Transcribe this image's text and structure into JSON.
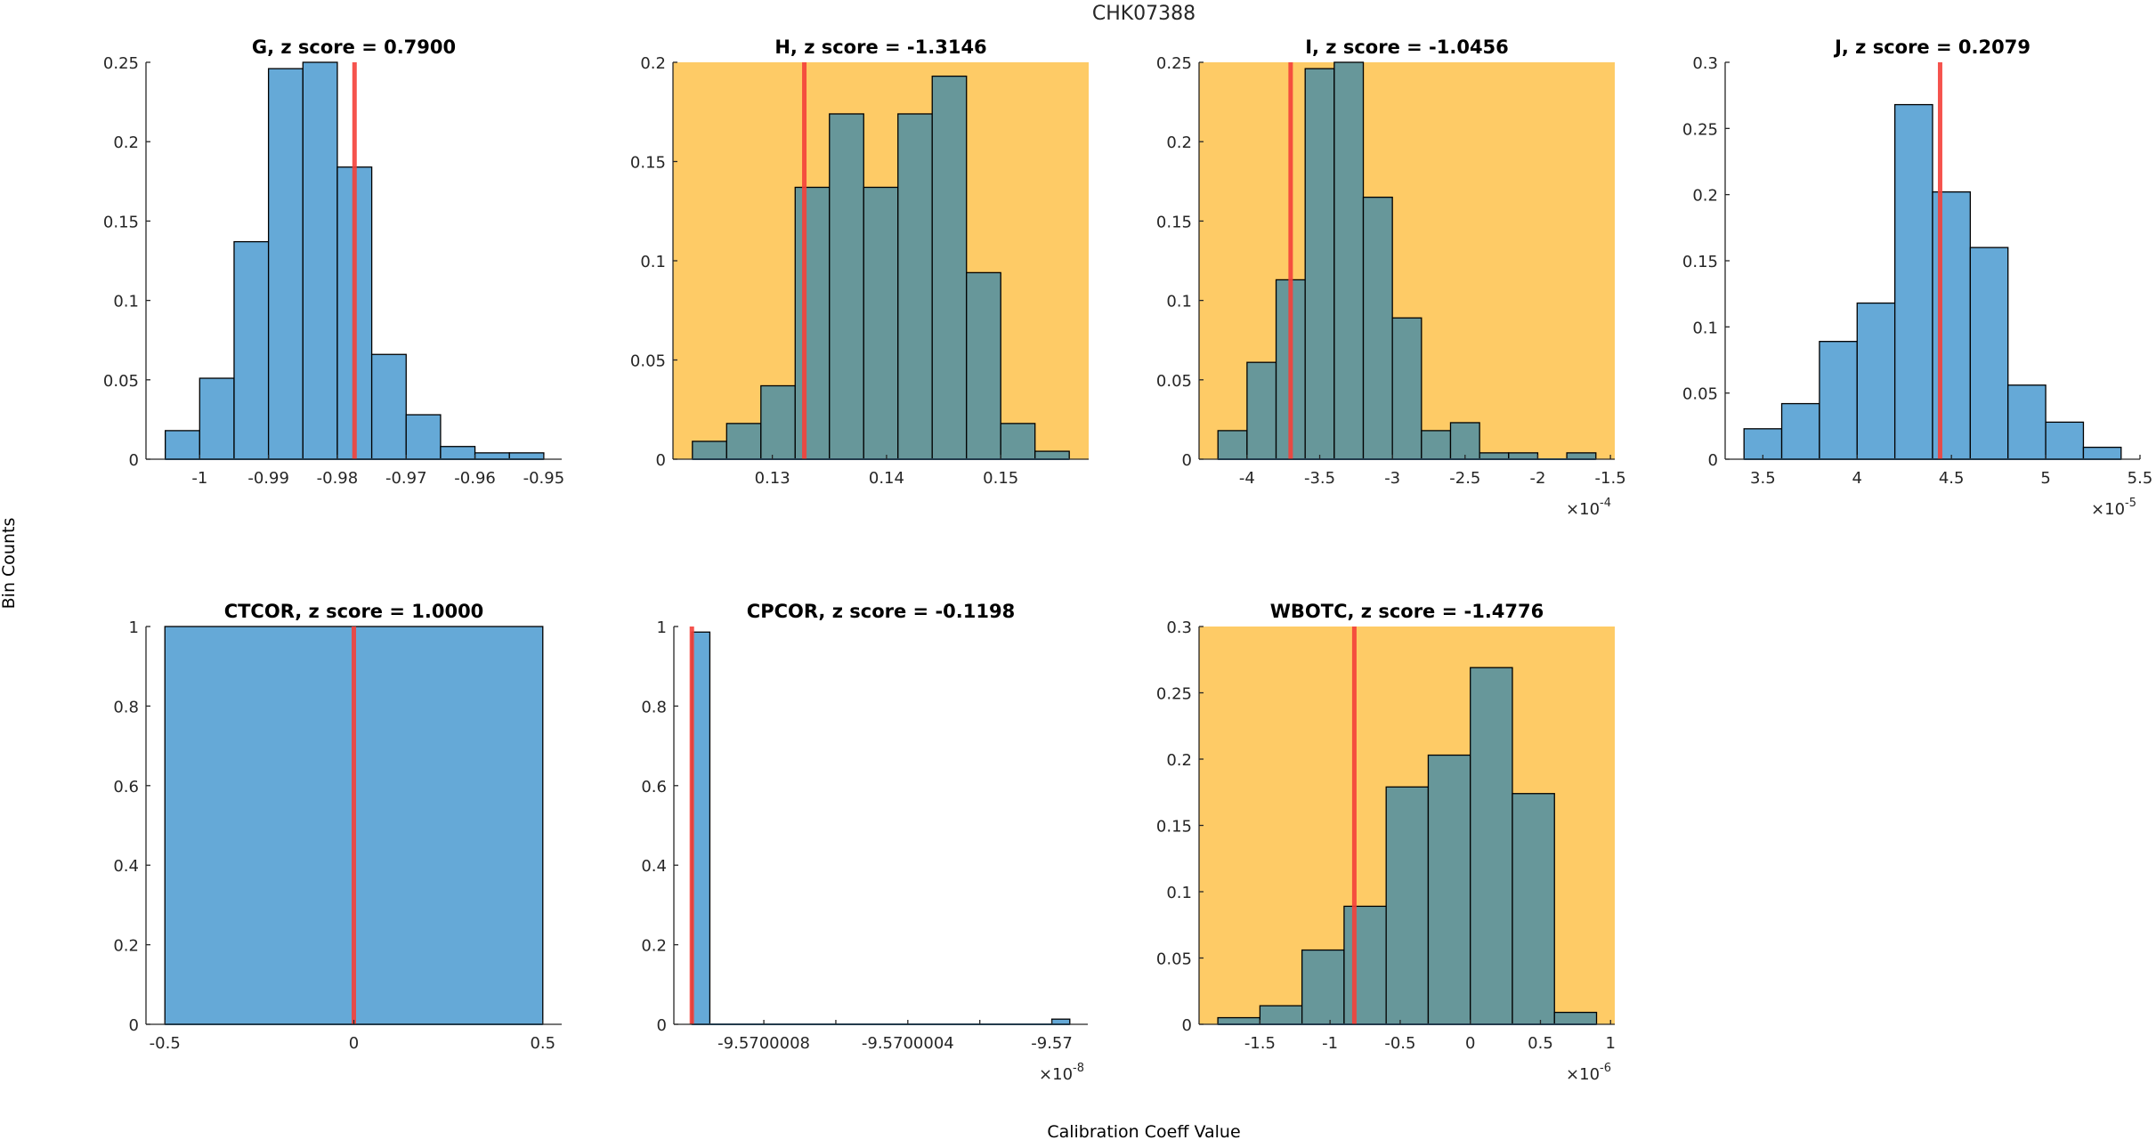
{
  "figure": {
    "title": "CHK07388",
    "ylabel": "Bin Counts",
    "xlabel": "Calibration Coeff Value"
  },
  "colors": {
    "bar_normal": "#65A9D7",
    "bar_flagged": "#67979A",
    "flagged_background": "#FECB66",
    "marker_line": "#F5413A",
    "axis": "#262626",
    "bar_edge": "#000000"
  },
  "chart_data": [
    {
      "type": "bar",
      "name": "G",
      "title": "G, z score = 0.7900",
      "z_score": 0.79,
      "flagged": false,
      "exponent_label": "",
      "xlim": [
        -1.0078,
        -0.9474
      ],
      "ylim": [
        0,
        0.25
      ],
      "xticks": [
        -1,
        -0.99,
        -0.98,
        -0.97,
        -0.96,
        -0.95
      ],
      "xtick_labels": [
        "-1",
        "-0.99",
        "-0.98",
        "-0.97",
        "-0.96",
        "-0.95"
      ],
      "yticks": [
        0,
        0.05,
        0.1,
        0.15,
        0.2,
        0.25
      ],
      "ytick_labels": [
        "0",
        "0.05",
        "0.1",
        "0.15",
        "0.2",
        "0.25"
      ],
      "bin_edges": [
        -1.005,
        -1.0,
        -0.995,
        -0.99,
        -0.985,
        -0.98,
        -0.975,
        -0.97,
        -0.965,
        -0.96,
        -0.955,
        -0.95
      ],
      "values": [
        0.018,
        0.051,
        0.137,
        0.246,
        0.25,
        0.184,
        0.066,
        0.028,
        0.008,
        0.004,
        0.004
      ],
      "marker_value": -0.9775
    },
    {
      "type": "bar",
      "name": "H",
      "title": "H, z score = -1.3146",
      "z_score": -1.3146,
      "flagged": true,
      "exponent_label": "",
      "xlim": [
        0.1213,
        0.1577
      ],
      "ylim": [
        0,
        0.2
      ],
      "xticks": [
        0.13,
        0.14,
        0.15
      ],
      "xtick_labels": [
        "0.13",
        "0.14",
        "0.15"
      ],
      "yticks": [
        0,
        0.05,
        0.1,
        0.15,
        0.2
      ],
      "ytick_labels": [
        "0",
        "0.05",
        "0.1",
        "0.15",
        "0.2"
      ],
      "bin_edges": [
        0.123,
        0.126,
        0.129,
        0.132,
        0.135,
        0.138,
        0.141,
        0.144,
        0.147,
        0.15,
        0.153,
        0.156
      ],
      "values": [
        0.009,
        0.018,
        0.037,
        0.137,
        0.174,
        0.137,
        0.174,
        0.193,
        0.094,
        0.018,
        0.004
      ],
      "marker_value": 0.1328
    },
    {
      "type": "bar",
      "name": "I",
      "title": "I, z score = -1.0456",
      "z_score": -1.0456,
      "flagged": true,
      "exponent_label": "×10",
      "exponent_power": "-4",
      "xlim": [
        -4.33,
        -1.47
      ],
      "ylim": [
        0,
        0.25
      ],
      "xticks": [
        -4,
        -3.5,
        -3,
        -2.5,
        -2,
        -1.5
      ],
      "xtick_labels": [
        "-4",
        "-3.5",
        "-3",
        "-2.5",
        "-2",
        "-1.5"
      ],
      "yticks": [
        0,
        0.05,
        0.1,
        0.15,
        0.2,
        0.25
      ],
      "ytick_labels": [
        "0",
        "0.05",
        "0.1",
        "0.15",
        "0.2",
        "0.25"
      ],
      "bin_edges": [
        -4.2,
        -4.0,
        -3.8,
        -3.6,
        -3.4,
        -3.2,
        -3.0,
        -2.8,
        -2.6,
        -2.4,
        -2.2,
        -2.0,
        -1.8,
        -1.6
      ],
      "values": [
        0.018,
        0.061,
        0.113,
        0.246,
        0.25,
        0.165,
        0.089,
        0.018,
        0.023,
        0.004,
        0.004,
        0,
        0.004
      ],
      "marker_value": -3.7
    },
    {
      "type": "bar",
      "name": "J",
      "title": "J, z score = 0.2079",
      "z_score": 0.2079,
      "flagged": false,
      "exponent_label": "×10",
      "exponent_power": "-5",
      "xlim": [
        3.3,
        5.5
      ],
      "ylim": [
        0,
        0.3
      ],
      "xticks": [
        3.5,
        4,
        4.5,
        5,
        5.5
      ],
      "xtick_labels": [
        "3.5",
        "4",
        "4.5",
        "5",
        "5.5"
      ],
      "yticks": [
        0,
        0.05,
        0.1,
        0.15,
        0.2,
        0.25,
        0.3
      ],
      "ytick_labels": [
        "0",
        "0.05",
        "0.1",
        "0.15",
        "0.2",
        "0.25",
        "0.3"
      ],
      "bin_edges": [
        3.4,
        3.6,
        3.8,
        4.0,
        4.2,
        4.4,
        4.6,
        4.8,
        5.0,
        5.2,
        5.4
      ],
      "values": [
        0.023,
        0.042,
        0.089,
        0.118,
        0.268,
        0.202,
        0.16,
        0.056,
        0.028,
        0.009
      ],
      "marker_value": 4.44
    },
    {
      "type": "bar",
      "name": "CTCOR",
      "title": "CTCOR, z score = 1.0000",
      "z_score": 1.0,
      "flagged": false,
      "exponent_label": "",
      "xlim": [
        -0.55,
        0.55
      ],
      "ylim": [
        0,
        1
      ],
      "xticks": [
        -0.5,
        0,
        0.5
      ],
      "xtick_labels": [
        "-0.5",
        "0",
        "0.5"
      ],
      "yticks": [
        0,
        0.2,
        0.4,
        0.6,
        0.8,
        1
      ],
      "ytick_labels": [
        "0",
        "0.2",
        "0.4",
        "0.6",
        "0.8",
        "1"
      ],
      "bin_edges": [
        -0.5,
        0.5
      ],
      "values": [
        1.0
      ],
      "marker_value": 0
    },
    {
      "type": "bar",
      "name": "CPCOR",
      "title": "CPCOR, z score = -0.1198",
      "z_score": -0.1198,
      "flagged": false,
      "exponent_label": "×10",
      "exponent_power": "-8",
      "xlim": [
        -9.57000105,
        -9.5699999
      ],
      "ylim": [
        0,
        1
      ],
      "xticks": [
        -9.5700008,
        -9.5700006,
        -9.5700004,
        -9.5700002,
        -9.57
      ],
      "xtick_labels": [
        "-9.5700008",
        "",
        "-9.5700004",
        "",
        "-9.57"
      ],
      "yticks": [
        0,
        0.2,
        0.4,
        0.6,
        0.8,
        1
      ],
      "ytick_labels": [
        "0",
        "0.2",
        "0.4",
        "0.6",
        "0.8",
        "1"
      ],
      "bin_edges": [
        -9.570001,
        -9.57000095,
        -9.57,
        -9.56999995
      ],
      "values": [
        0.986,
        0,
        0.013
      ],
      "marker_value": -9.570001
    },
    {
      "type": "bar",
      "name": "WBOTC",
      "title": "WBOTC, z score = -1.4776",
      "z_score": -1.4776,
      "flagged": true,
      "exponent_label": "×10",
      "exponent_power": "-6",
      "xlim": [
        -1.934,
        1.03
      ],
      "ylim": [
        0,
        0.3
      ],
      "xticks": [
        -1.5,
        -1,
        -0.5,
        0,
        0.5,
        1
      ],
      "xtick_labels": [
        "-1.5",
        "-1",
        "-0.5",
        "0",
        "0.5",
        "1"
      ],
      "yticks": [
        0,
        0.05,
        0.1,
        0.15,
        0.2,
        0.25,
        0.3
      ],
      "ytick_labels": [
        "0",
        "0.05",
        "0.1",
        "0.15",
        "0.2",
        "0.25",
        "0.3"
      ],
      "bin_edges": [
        -1.8,
        -1.5,
        -1.2,
        -0.9,
        -0.6,
        -0.3,
        0,
        0.3,
        0.6,
        0.9
      ],
      "values": [
        0.005,
        0.014,
        0.056,
        0.089,
        0.179,
        0.203,
        0.269,
        0.174,
        0.009
      ],
      "marker_value": -0.827
    }
  ]
}
